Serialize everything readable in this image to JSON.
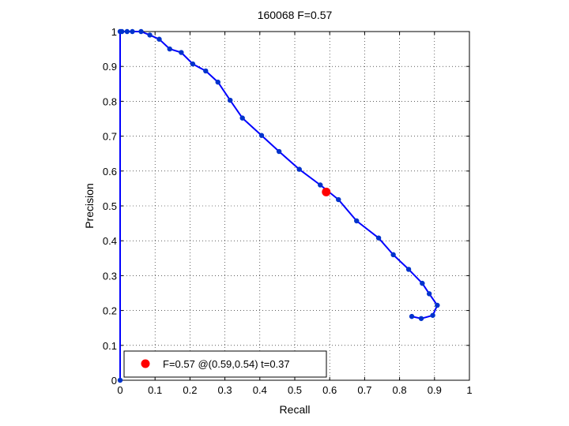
{
  "chart_data": {
    "type": "line",
    "title": "160068 F=0.57",
    "xlabel": "Recall",
    "ylabel": "Precision",
    "xlim": [
      0,
      1
    ],
    "ylim": [
      0,
      1
    ],
    "grid": true,
    "legend_placement": "bottom-left",
    "xticks": [
      "0",
      "0.1",
      "0.2",
      "0.3",
      "0.4",
      "0.5",
      "0.6",
      "0.7",
      "0.8",
      "0.9",
      "1"
    ],
    "yticks": [
      "0",
      "0.1",
      "0.2",
      "0.3",
      "0.4",
      "0.5",
      "0.6",
      "0.7",
      "0.8",
      "0.9",
      "1"
    ],
    "line_color": "#0000ff",
    "marker_color": "#0033cc",
    "highlight_color": "#ff0000",
    "series": [
      {
        "x": [
          0,
          0,
          0.005,
          0.02,
          0.035,
          0.06,
          0.085,
          0.112,
          0.142,
          0.175,
          0.208,
          0.245,
          0.28,
          0.315,
          0.35,
          0.405,
          0.455,
          0.513,
          0.573,
          0.625,
          0.677,
          0.74,
          0.782,
          0.826,
          0.865,
          0.885,
          0.908,
          0.895,
          0.862,
          0.835
        ],
        "y": [
          0,
          1,
          1,
          1,
          1,
          1,
          0.99,
          0.978,
          0.95,
          0.94,
          0.907,
          0.887,
          0.855,
          0.803,
          0.752,
          0.702,
          0.656,
          0.605,
          0.56,
          0.518,
          0.457,
          0.408,
          0.36,
          0.318,
          0.278,
          0.248,
          0.215,
          0.186,
          0.177,
          0.183
        ]
      }
    ],
    "highlight": {
      "x": 0.59,
      "y": 0.54
    },
    "legend": {
      "label": "F=0.57 @(0.59,0.54) t=0.37"
    }
  }
}
